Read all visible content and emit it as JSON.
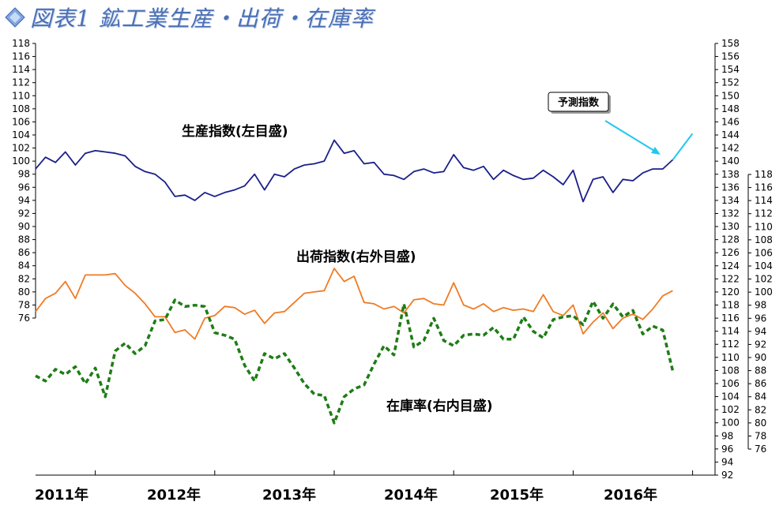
{
  "title": "図表1 鉱工業生産・出荷・在庫率",
  "chart_data": {
    "type": "line",
    "x_labels": [
      "2011年",
      "2012年",
      "2013年",
      "2014年",
      "2015年",
      "2016年"
    ],
    "x_start": "2011-01",
    "left_axis": {
      "min": 76,
      "max": 118,
      "step": 2
    },
    "right_outer_axis": {
      "min": 92,
      "max": 158,
      "step": 2
    },
    "right_inner_axis": {
      "min": 76,
      "max": 118,
      "step": 2
    },
    "annotations": {
      "forecast": "予測指数"
    },
    "series": [
      {
        "name": "生産指数(左目盛)",
        "axis": "left",
        "color": "#1a1f8a",
        "dash": false,
        "values": [
          98.8,
          100.6,
          99.8,
          101.4,
          99.4,
          101.2,
          101.6,
          101.4,
          101.2,
          100.8,
          99.2,
          98.4,
          98.0,
          96.8,
          94.6,
          94.8,
          94.0,
          95.2,
          94.6,
          95.2,
          95.6,
          96.2,
          98.0,
          95.6,
          98.0,
          97.6,
          98.8,
          99.4,
          99.6,
          100.0,
          103.2,
          101.2,
          101.6,
          99.6,
          99.8,
          98.0,
          97.8,
          97.2,
          98.4,
          98.8,
          98.2,
          98.4,
          101.0,
          99.0,
          98.6,
          99.2,
          97.2,
          98.6,
          97.8,
          97.2,
          97.4,
          98.6,
          97.6,
          96.4,
          98.6,
          93.8,
          97.2,
          97.6,
          95.2,
          97.2,
          97.0,
          98.2,
          98.8,
          98.8,
          100.2
        ],
        "forecast": [
          100.2,
          104.2
        ]
      },
      {
        "name": "出荷指数(右外目盛)",
        "axis": "right_outer",
        "color": "#f07b25",
        "dash": false,
        "values": [
          117.0,
          119.0,
          119.8,
          121.6,
          119.0,
          122.6,
          122.6,
          122.6,
          122.8,
          121.0,
          119.8,
          118.2,
          116.2,
          116.2,
          113.8,
          114.2,
          112.8,
          116.0,
          116.4,
          117.8,
          117.6,
          116.6,
          117.2,
          115.2,
          116.8,
          117.0,
          118.4,
          119.8,
          120.0,
          120.2,
          123.6,
          121.6,
          122.4,
          118.4,
          118.2,
          117.4,
          117.8,
          116.8,
          118.8,
          119.0,
          118.2,
          118.0,
          121.4,
          118.0,
          117.4,
          118.2,
          117.0,
          117.6,
          117.2,
          117.4,
          117.0,
          119.6,
          117.0,
          116.4,
          118.0,
          113.6,
          115.4,
          116.8,
          114.4,
          116.0,
          116.6,
          115.8,
          117.4,
          119.4,
          120.2
        ]
      },
      {
        "name": "在庫率(右内目盛)",
        "axis": "right_inner",
        "color": "#1e7d15",
        "dash": true,
        "values": [
          87.2,
          86.4,
          88.2,
          87.4,
          88.6,
          86.0,
          88.4,
          84.0,
          91.0,
          92.2,
          90.6,
          91.8,
          95.6,
          95.8,
          98.8,
          97.8,
          98.0,
          97.8,
          93.8,
          93.4,
          92.8,
          88.8,
          86.4,
          90.6,
          89.8,
          90.6,
          88.4,
          86.0,
          84.4,
          84.2,
          80.0,
          84.0,
          85.2,
          85.8,
          89.0,
          91.8,
          90.4,
          98.2,
          91.6,
          92.6,
          96.0,
          92.6,
          91.8,
          93.4,
          93.6,
          93.4,
          94.6,
          92.8,
          92.8,
          96.2,
          94.0,
          93.0,
          95.8,
          96.2,
          96.4,
          95.0,
          98.6,
          96.0,
          98.2,
          96.2,
          97.2,
          93.6,
          94.8,
          94.2,
          88.0
        ]
      }
    ],
    "series_labels": [
      "生産指数(左目盛)",
      "出荷指数(右外目盛)",
      "在庫率(右内目盛)"
    ]
  }
}
